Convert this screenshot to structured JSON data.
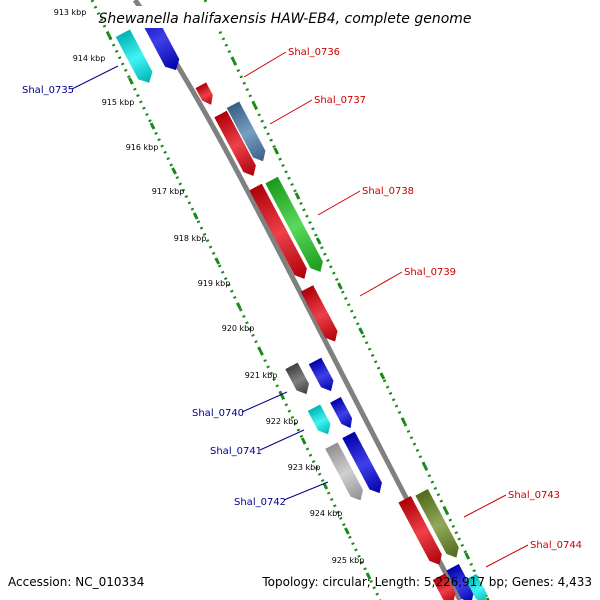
{
  "title": "Shewanella halifaxensis HAW-EB4, complete genome",
  "footer": {
    "accession": "Accession: NC_010334",
    "summary": "Topology: circular; Length: 5,226,917 bp; Genes: 4,433"
  },
  "ticks": [
    "913 kbp",
    "914 kbp",
    "915 kbp",
    "916 kbp",
    "917 kbp",
    "918 kbp",
    "919 kbp",
    "920 kbp",
    "921 kbp",
    "922 kbp",
    "923 kbp",
    "924 kbp",
    "925 kbp"
  ],
  "genes": [
    {
      "label": "Shal_0735",
      "color": "#00008b"
    },
    {
      "label": "Shal_0736",
      "color": "#cc0000"
    },
    {
      "label": "Shal_0737",
      "color": "#cc0000"
    },
    {
      "label": "Shal_0738",
      "color": "#cc0000"
    },
    {
      "label": "Shal_0739",
      "color": "#cc0000"
    },
    {
      "label": "Shal_0740",
      "color": "#00008b"
    },
    {
      "label": "Shal_0741",
      "color": "#00008b"
    },
    {
      "label": "Shal_0742",
      "color": "#00008b"
    },
    {
      "label": "Shal_0743",
      "color": "#cc0000"
    },
    {
      "label": "Shal_0744",
      "color": "#cc0000"
    }
  ],
  "feature_colors": {
    "red": "#e8000b",
    "blue": "#0000e0",
    "cyan": "#00f0f0",
    "green": "#22cc22",
    "steelblue": "#4a7fb0",
    "olive": "#6b8c23",
    "darkgray": "#555555",
    "lightgray": "#c0c0c0",
    "backbone": "#808080",
    "tickgreen": "#1a8a1a"
  }
}
